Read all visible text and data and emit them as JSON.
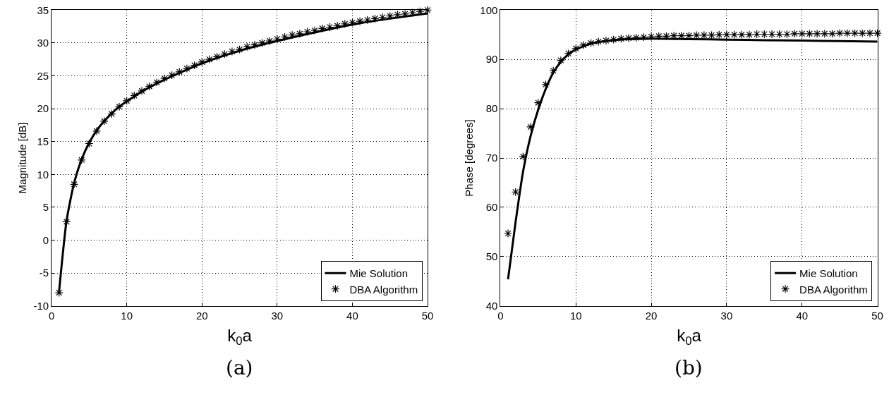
{
  "chart_data": [
    {
      "type": "line",
      "xlabel": "k$_{0}$a",
      "ylabel": "Magnitude [dB]",
      "annotations": [
        "(a)"
      ],
      "xlim": [
        0,
        50
      ],
      "xticks": [
        0,
        10,
        20,
        30,
        40,
        50
      ],
      "ylim": [
        -10,
        35
      ],
      "yticks": [
        -10,
        -5,
        0,
        5,
        10,
        15,
        20,
        25,
        30,
        35
      ],
      "grid": true,
      "legend": "bottom right",
      "series": [
        {
          "name": "Mie Solution",
          "color": "#000000",
          "marker": "none",
          "x": [
            1,
            2,
            3,
            4,
            5,
            6,
            7,
            8,
            9,
            10,
            12,
            15,
            20,
            25,
            30,
            35,
            40,
            45,
            50
          ],
          "values": [
            -7.8,
            3.0,
            8.7,
            12.3,
            14.8,
            16.7,
            18.1,
            19.3,
            20.3,
            21.1,
            22.6,
            24.4,
            26.9,
            28.8,
            30.3,
            31.6,
            32.8,
            33.7,
            34.5
          ]
        },
        {
          "name": "DBA Algorithm",
          "type": "scatter",
          "color": "#000000",
          "marker": "cross",
          "x": [
            1,
            2,
            3,
            4,
            5,
            6,
            7,
            8,
            9,
            10,
            11,
            12,
            13,
            14,
            15,
            16,
            17,
            18,
            19,
            20,
            21,
            22,
            23,
            24,
            25,
            26,
            27,
            28,
            29,
            30,
            31,
            32,
            33,
            34,
            35,
            36,
            37,
            38,
            39,
            40,
            41,
            42,
            43,
            44,
            45,
            46,
            47,
            48,
            49,
            50
          ],
          "values": [
            -8.0,
            2.8,
            8.5,
            12.2,
            14.7,
            16.6,
            18.1,
            19.2,
            20.3,
            21.2,
            22.0,
            22.7,
            23.4,
            24.0,
            24.6,
            25.1,
            25.6,
            26.1,
            26.6,
            27.1,
            27.5,
            27.9,
            28.3,
            28.7,
            29.0,
            29.4,
            29.7,
            30.0,
            30.3,
            30.6,
            30.9,
            31.2,
            31.4,
            31.7,
            31.9,
            32.2,
            32.4,
            32.6,
            32.9,
            33.1,
            33.3,
            33.5,
            33.7,
            33.9,
            34.1,
            34.3,
            34.4,
            34.6,
            34.8,
            35.0
          ]
        }
      ]
    },
    {
      "type": "line",
      "xlabel": "k$_{0}$a",
      "ylabel": "Phase [degrees]",
      "annotations": [
        "(b)"
      ],
      "xlim": [
        0,
        50
      ],
      "xticks": [
        0,
        10,
        20,
        30,
        40,
        50
      ],
      "ylim": [
        40,
        100
      ],
      "yticks": [
        40,
        50,
        60,
        70,
        80,
        90,
        100
      ],
      "grid": true,
      "legend": "bottom right",
      "series": [
        {
          "name": "Mie Solution",
          "color": "#000000",
          "marker": "none",
          "x": [
            1,
            2,
            3,
            4,
            5,
            6,
            7,
            8,
            9,
            10,
            12,
            15,
            20,
            25,
            30,
            35,
            40,
            45,
            50
          ],
          "values": [
            45.4,
            57.0,
            67.3,
            74.5,
            79.8,
            84.0,
            87.3,
            89.5,
            91.0,
            92.0,
            93.2,
            93.9,
            94.2,
            94.1,
            94.0,
            93.9,
            93.8,
            93.7,
            93.6
          ]
        },
        {
          "name": "DBA Algorithm",
          "type": "scatter",
          "color": "#000000",
          "marker": "cross",
          "x": [
            1,
            2,
            3,
            4,
            5,
            6,
            7,
            8,
            9,
            10,
            11,
            12,
            13,
            14,
            15,
            16,
            17,
            18,
            19,
            20,
            21,
            22,
            23,
            24,
            25,
            26,
            27,
            28,
            29,
            30,
            31,
            32,
            33,
            34,
            35,
            36,
            37,
            38,
            39,
            40,
            41,
            42,
            43,
            44,
            45,
            46,
            47,
            48,
            49,
            50
          ],
          "values": [
            54.7,
            63.1,
            70.3,
            76.3,
            81.2,
            84.9,
            87.7,
            89.8,
            91.2,
            92.2,
            92.9,
            93.3,
            93.6,
            93.8,
            94.0,
            94.2,
            94.3,
            94.4,
            94.5,
            94.6,
            94.7,
            94.7,
            94.8,
            94.8,
            94.8,
            94.9,
            94.9,
            94.9,
            95.0,
            95.0,
            95.0,
            95.0,
            95.0,
            95.1,
            95.1,
            95.1,
            95.1,
            95.1,
            95.2,
            95.2,
            95.2,
            95.2,
            95.2,
            95.2,
            95.3,
            95.3,
            95.3,
            95.3,
            95.3,
            95.3
          ]
        }
      ]
    }
  ]
}
